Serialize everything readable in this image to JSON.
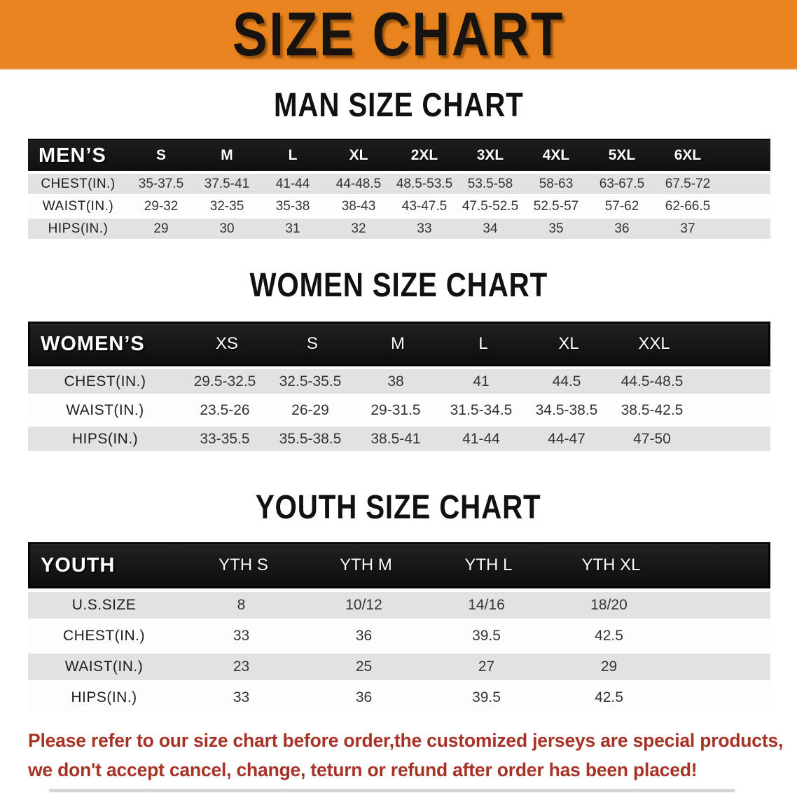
{
  "banner": {
    "title": "SIZE CHART",
    "background": "#E8831E"
  },
  "sections": {
    "men": {
      "heading": "MAN SIZE CHART"
    },
    "women": {
      "heading": "WOMEN SIZE CHART"
    },
    "youth": {
      "heading": "YOUTH SIZE CHART"
    }
  },
  "tables": {
    "men": {
      "header": [
        "MEN’S",
        "S",
        "M",
        "L",
        "XL",
        "2XL",
        "3XL",
        "4XL",
        "5XL",
        "6XL"
      ],
      "rows": [
        {
          "label": "CHEST(IN.)",
          "values": [
            "35-37.5",
            "37.5-41",
            "41-44",
            "44-48.5",
            "48.5-53.5",
            "53.5-58",
            "58-63",
            "63-67.5",
            "67.5-72"
          ]
        },
        {
          "label": "WAIST(IN.)",
          "values": [
            "29-32",
            "32-35",
            "35-38",
            "38-43",
            "43-47.5",
            "47.5-52.5",
            "52.5-57",
            "57-62",
            "62-66.5"
          ]
        },
        {
          "label": "HIPS(IN.)",
          "values": [
            "29",
            "30",
            "31",
            "32",
            "33",
            "34",
            "35",
            "36",
            "37"
          ]
        }
      ]
    },
    "women": {
      "header": [
        "WOMEN’S",
        "XS",
        "S",
        "M",
        "L",
        "XL",
        "XXL"
      ],
      "rows": [
        {
          "label": "CHEST(IN.)",
          "values": [
            "29.5-32.5",
            "32.5-35.5",
            "38",
            "41",
            "44.5",
            "44.5-48.5"
          ]
        },
        {
          "label": "WAIST(IN.)",
          "values": [
            "23.5-26",
            "26-29",
            "29-31.5",
            "31.5-34.5",
            "34.5-38.5",
            "38.5-42.5"
          ]
        },
        {
          "label": "HIPS(IN.)",
          "values": [
            "33-35.5",
            "35.5-38.5",
            "38.5-41",
            "41-44",
            "44-47",
            "47-50"
          ]
        }
      ]
    },
    "youth": {
      "header": [
        "YOUTH",
        "YTH S",
        "YTH M",
        "YTH L",
        "YTH XL"
      ],
      "rows": [
        {
          "label": "U.S.SIZE",
          "values": [
            "8",
            "10/12",
            "14/16",
            "18/20"
          ]
        },
        {
          "label": "CHEST(IN.)",
          "values": [
            "33",
            "36",
            "39.5",
            "42.5"
          ]
        },
        {
          "label": "WAIST(IN.)",
          "values": [
            "23",
            "25",
            "27",
            "29"
          ]
        },
        {
          "label": "HIPS(IN.)",
          "values": [
            "33",
            "36",
            "39.5",
            "42.5"
          ]
        }
      ]
    }
  },
  "disclaimer": {
    "line1": "Please refer to our size chart before order,the customized jerseys are special products,",
    "line2": "we don't accept cancel, change, teturn or refund after order has been placed!",
    "color": "#A93226"
  }
}
